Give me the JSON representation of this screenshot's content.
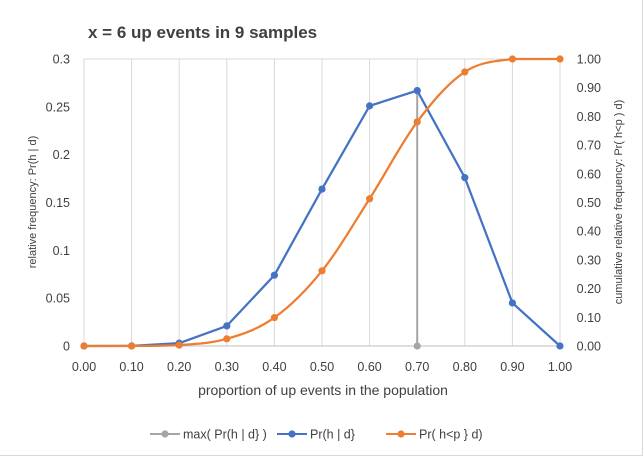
{
  "chart_data": {
    "type": "line",
    "title": "x = 6 up events in 9 samples",
    "xlabel": "proportion of up events in the population",
    "ylabel_left": "relative frequency: Pr(h | d)",
    "ylabel_right": "cumulative relative frequency: Pr( h<p ) d)",
    "x": [
      0.0,
      0.1,
      0.2,
      0.3,
      0.4,
      0.5,
      0.6,
      0.7,
      0.8,
      0.9,
      1.0
    ],
    "x_tick_labels": [
      "0.00",
      "0.10",
      "0.20",
      "0.30",
      "0.40",
      "0.50",
      "0.60",
      "0.70",
      "0.80",
      "0.90",
      "1.00"
    ],
    "ylim_left": [
      0,
      0.3
    ],
    "y_left_ticks": [
      0,
      0.05,
      0.1,
      0.15,
      0.2,
      0.25,
      0.3
    ],
    "y_left_tick_labels": [
      "0",
      "0.05",
      "0.1",
      "0.15",
      "0.2",
      "0.25",
      "0.3"
    ],
    "ylim_right": [
      0,
      1.0
    ],
    "y_right_ticks": [
      0,
      0.1,
      0.2,
      0.3,
      0.4,
      0.5,
      0.6,
      0.7,
      0.8,
      0.9,
      1.0
    ],
    "y_right_tick_labels": [
      "0.00",
      "0.10",
      "0.20",
      "0.30",
      "0.40",
      "0.50",
      "0.60",
      "0.70",
      "0.80",
      "0.90",
      "1.00"
    ],
    "grid": "vertical",
    "legend_position": "bottom",
    "series": [
      {
        "name": "max( Pr(h | d} )",
        "axis": "left",
        "color": "#a5a5a5",
        "x": [
          0.7,
          0.7
        ],
        "values": [
          0,
          0.267
        ]
      },
      {
        "name": "Pr(h | d}",
        "axis": "left",
        "color": "#4472c4",
        "x": [
          0.0,
          0.1,
          0.2,
          0.3,
          0.4,
          0.5,
          0.6,
          0.7,
          0.8,
          0.9,
          1.0
        ],
        "values": [
          0,
          0.0001,
          0.003,
          0.021,
          0.074,
          0.164,
          0.251,
          0.267,
          0.176,
          0.045,
          0
        ]
      },
      {
        "name": "Pr( h<p } d)",
        "axis": "right",
        "color": "#ed7d31",
        "x": [
          0.0,
          0.1,
          0.2,
          0.3,
          0.4,
          0.5,
          0.6,
          0.7,
          0.8,
          0.9,
          1.0
        ],
        "values": [
          0,
          0.0,
          0.003,
          0.025,
          0.099,
          0.262,
          0.513,
          0.781,
          0.955,
          1.0,
          1.0
        ]
      }
    ]
  }
}
